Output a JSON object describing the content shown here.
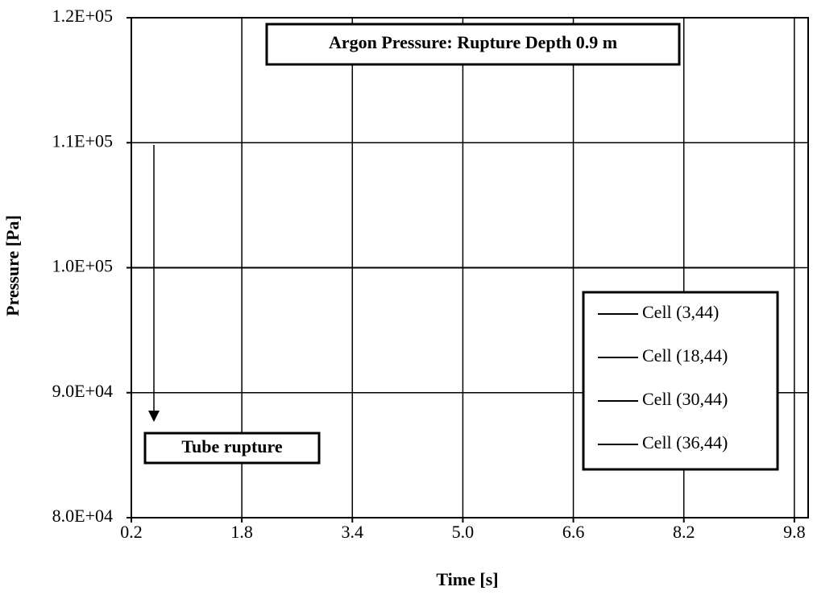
{
  "chart_data": {
    "type": "line",
    "title": "Argon Pressure: Rupture Depth 0.9 m",
    "xlabel": "Time [s]",
    "ylabel": "Pressure [Pa]",
    "annotations": [
      "Tube rupture"
    ],
    "x": [
      0.2,
      9.8
    ],
    "series": [
      {
        "name": "Cell (3,44)",
        "color": "#000000",
        "values": [
          100000,
          100000
        ]
      },
      {
        "name": "Cell (18,44)",
        "color": "#000000",
        "values": [
          100000,
          100000
        ]
      },
      {
        "name": "Cell (30,44)",
        "color": "#000000",
        "values": [
          100000,
          100000
        ]
      },
      {
        "name": "Cell (36,44)",
        "color": "#000000",
        "values": [
          100000,
          100000
        ]
      }
    ],
    "xlim": [
      0.2,
      10.0
    ],
    "xticks": [
      0.2,
      1.8,
      3.4,
      {
        "value": 5.0,
        "label": "5.0"
      },
      6.6,
      8.2,
      9.8
    ],
    "ylim": [
      80000,
      120000
    ],
    "yticks": [
      {
        "value": 80000,
        "label": "8.0E+04"
      },
      {
        "value": 90000,
        "label": "9.0E+04"
      },
      {
        "value": 100000,
        "label": "1.0E+05"
      },
      {
        "value": 110000,
        "label": "1.1E+05"
      },
      {
        "value": 120000,
        "label": "1.2E+05"
      }
    ],
    "grid": true,
    "legend": "right"
  }
}
